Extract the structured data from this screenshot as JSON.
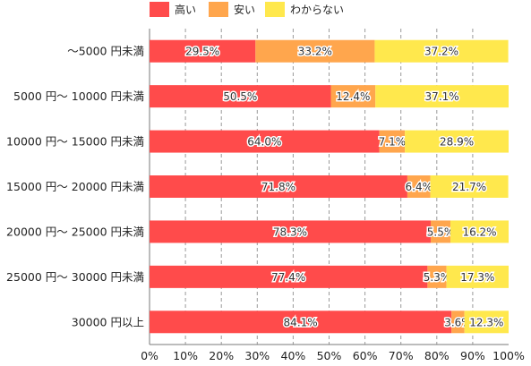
{
  "chart_data": {
    "type": "bar",
    "orientation": "horizontal",
    "stacked": true,
    "categories": [
      "～5000 円未満",
      "5000 円～ 10000 円未満",
      "10000 円～ 15000 円未満",
      "15000 円～ 20000 円未満",
      "20000 円～ 25000 円未満",
      "25000 円～ 30000 円未満",
      "30000 円以上"
    ],
    "series": [
      {
        "name": "高い",
        "color": "#ff4b4b",
        "values": [
          29.5,
          50.5,
          64.0,
          71.8,
          78.3,
          77.4,
          84.1
        ],
        "labels": [
          "29.5%",
          "50.5%",
          "64.0%",
          "71.8%",
          "78.3%",
          "77.4%",
          "84.1%"
        ]
      },
      {
        "name": "安い",
        "color": "#ffa64d",
        "values": [
          33.2,
          12.4,
          7.1,
          6.4,
          5.5,
          5.3,
          3.6
        ],
        "labels": [
          "33.2%",
          "12.4%",
          "7.1%",
          "6.4%",
          "5.5%",
          "5.3%",
          "3.6%"
        ]
      },
      {
        "name": "わからない",
        "color": "#ffe84d",
        "values": [
          37.2,
          37.1,
          28.9,
          21.7,
          16.2,
          17.3,
          12.3
        ],
        "labels": [
          "37.2%",
          "37.1%",
          "28.9%",
          "21.7%",
          "16.2%",
          "17.3%",
          "12.3%"
        ]
      }
    ],
    "xlim": [
      0,
      100
    ],
    "xticks": [
      "0%",
      "10%",
      "20%",
      "30%",
      "40%",
      "50%",
      "60%",
      "70%",
      "80%",
      "90%",
      "100%"
    ],
    "grid": "vertical-dashed",
    "legend": "top"
  }
}
